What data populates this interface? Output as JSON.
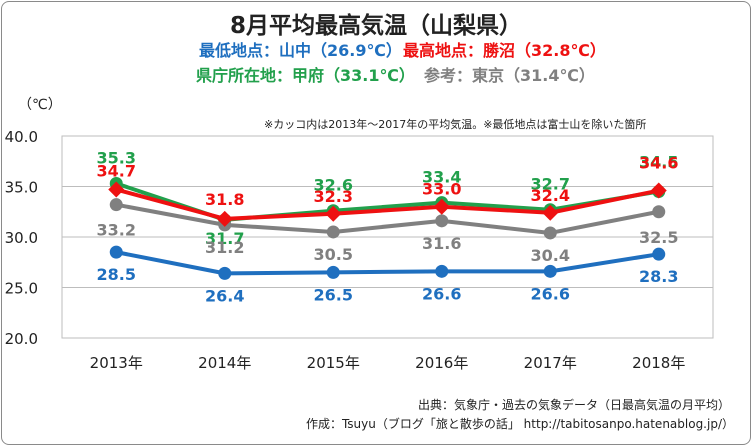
{
  "title": "8月平均最高気温（山梨県）",
  "subtitles": {
    "lowest": "最低地点：山中（26.9℃）",
    "highest": "最高地点：勝沼（32.8℃）",
    "capital": "県庁所在地：甲府（33.1℃）",
    "reference": "参考：東京（31.4℃）"
  },
  "unit_label": "（℃）",
  "note": "※カッコ内は2013年〜2017年の平均気温。※最低地点は富士山を除いた箇所",
  "source": "出典：気象庁・過去の気象データ（日最高気温の月平均）",
  "author": "作成：Tsuyu（ブログ「旅と散歩の話」 http://tabitosanpo.hatenablog.jp/）",
  "colors": {
    "yamanaka": "#1f6fbf",
    "katsunuma": "#ee1111",
    "kofu": "#22a04c",
    "tokyo": "#808080"
  },
  "chart_data": {
    "type": "line",
    "categories": [
      "2013年",
      "2014年",
      "2015年",
      "2016年",
      "2017年",
      "2018年"
    ],
    "ylim": [
      20,
      40
    ],
    "yticks": [
      "20.0",
      "25.0",
      "30.0",
      "35.0",
      "40.0"
    ],
    "grid": true,
    "series": [
      {
        "key": "kofu",
        "values": [
          35.3,
          31.7,
          32.6,
          33.4,
          32.7,
          34.5
        ],
        "labels": [
          "35.3",
          "31.7",
          "32.6",
          "33.4",
          "32.7",
          "34.5"
        ],
        "marker": "circle"
      },
      {
        "key": "tokyo",
        "values": [
          33.2,
          31.2,
          30.5,
          31.6,
          30.4,
          32.5
        ],
        "labels": [
          "33.2",
          "31.2",
          "30.5",
          "31.6",
          "30.4",
          "32.5"
        ],
        "marker": "circle"
      },
      {
        "key": "yamanaka",
        "values": [
          28.5,
          26.4,
          26.5,
          26.6,
          26.6,
          28.3
        ],
        "labels": [
          "28.5",
          "26.4",
          "26.5",
          "26.6",
          "26.6",
          "28.3"
        ],
        "marker": "circle"
      },
      {
        "key": "katsunuma",
        "values": [
          34.7,
          31.8,
          32.3,
          33.0,
          32.4,
          34.6
        ],
        "labels": [
          "34.7",
          "31.8",
          "32.3",
          "33.0",
          "32.4",
          "34.6"
        ],
        "marker": "diamond"
      }
    ]
  }
}
